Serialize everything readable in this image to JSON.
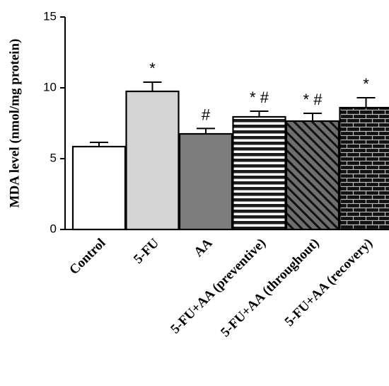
{
  "chart_data": {
    "type": "bar",
    "title": "",
    "xlabel": "",
    "ylabel": "MDA level (nmol/mg protein)",
    "ylim": [
      0,
      15
    ],
    "yticks": [
      0,
      5,
      10,
      15
    ],
    "grid": false,
    "categories": [
      "Control",
      "5-FU",
      "AA",
      "5-FU+AA (preventive)",
      "5-FU+AA (throughout)",
      "5-FU+AA (recovery)"
    ],
    "values": [
      5.85,
      9.75,
      6.75,
      7.95,
      7.65,
      8.6
    ],
    "errors": [
      0.3,
      0.65,
      0.38,
      0.4,
      0.55,
      0.7
    ],
    "annotations": [
      "",
      "*",
      "#",
      "* #",
      "* #",
      "*"
    ],
    "fills": [
      "white",
      "light-gray",
      "dark-gray",
      "horizontal-stripes",
      "diagonal-hatch",
      "brick"
    ]
  }
}
